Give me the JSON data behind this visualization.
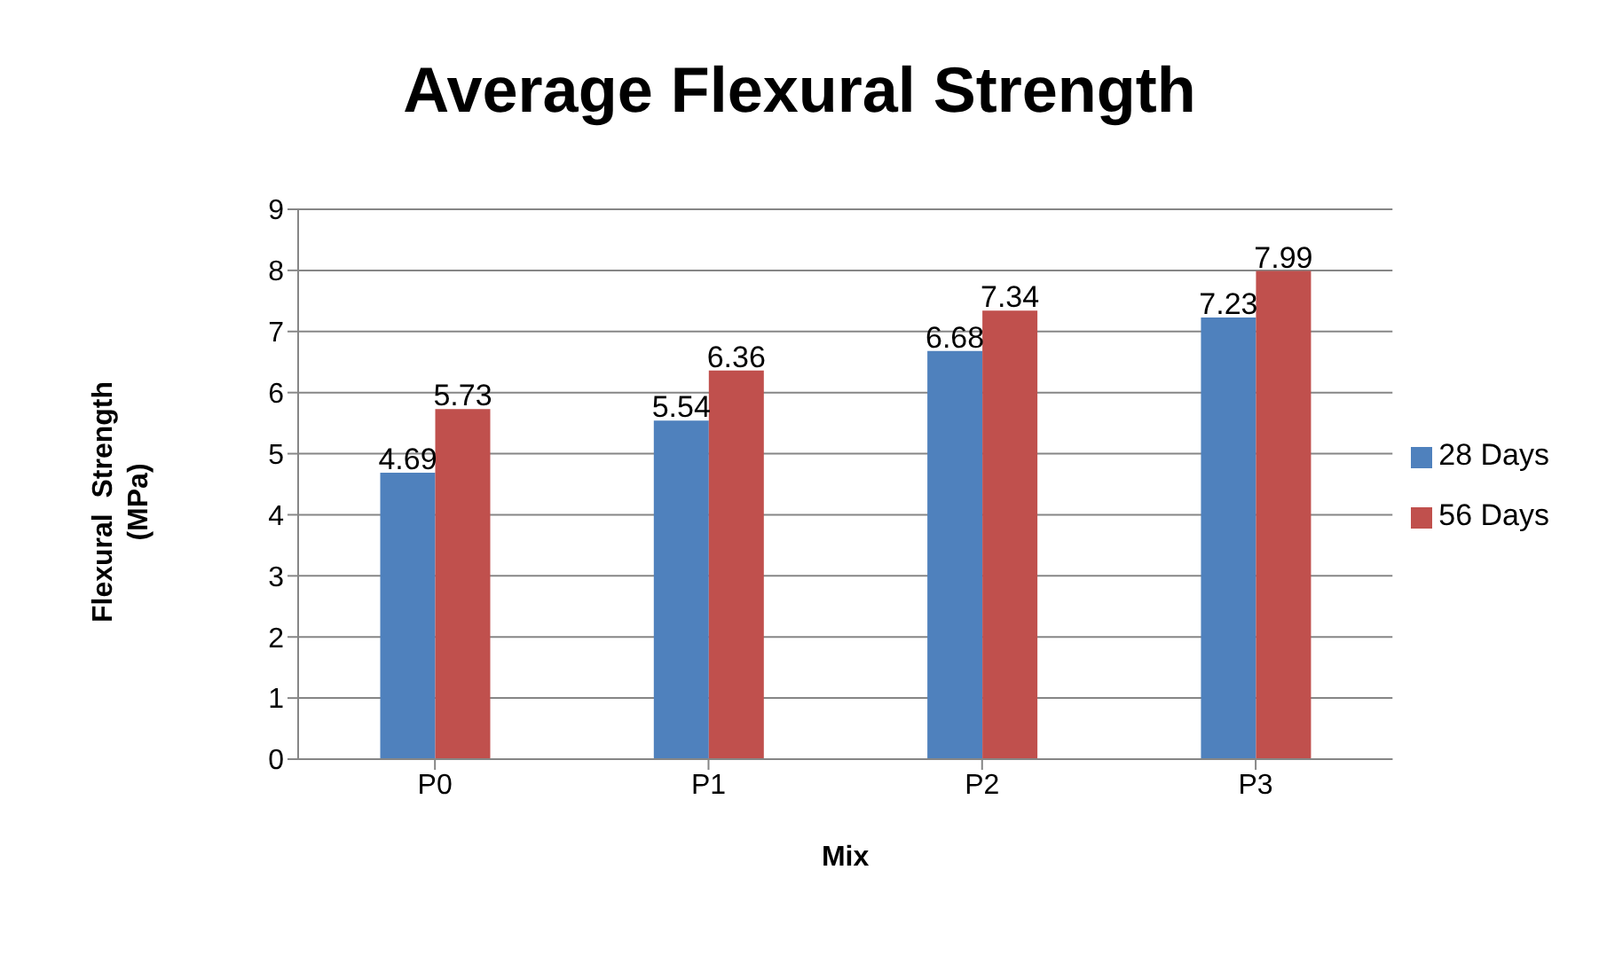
{
  "chart_data": {
    "type": "bar",
    "title": "Average Flexural Strength",
    "xlabel": "Mix",
    "ylabel": "Flexural  Strength\n(MPa)",
    "categories": [
      "P0",
      "P1",
      "P2",
      "P3"
    ],
    "series": [
      {
        "name": "28 Days",
        "color": "#4f81bd",
        "values": [
          4.69,
          5.54,
          6.68,
          7.23
        ]
      },
      {
        "name": "56 Days",
        "color": "#c0504d",
        "values": [
          5.73,
          6.36,
          7.34,
          7.99
        ]
      }
    ],
    "ylim": [
      0,
      9
    ],
    "yticks": [
      0,
      1,
      2,
      3,
      4,
      5,
      6,
      7,
      8,
      9
    ],
    "grid": "y",
    "legend": "right",
    "data_labels": true
  }
}
